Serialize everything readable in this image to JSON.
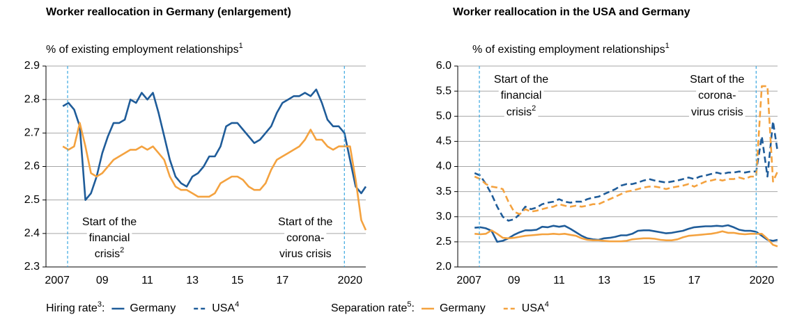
{
  "chart_data": [
    {
      "type": "line",
      "title": "Worker reallocation in Germany (enlargement)",
      "subtitle": "% of existing employment relationships",
      "subtitle_note": "1",
      "xlim": [
        2007,
        2021.2
      ],
      "xticks": [
        {
          "value": 2007.5,
          "label": "2007"
        },
        {
          "value": 2009.5,
          "label": "09"
        },
        {
          "value": 2011.5,
          "label": "11"
        },
        {
          "value": 2013.5,
          "label": "13"
        },
        {
          "value": 2015.5,
          "label": "15"
        },
        {
          "value": 2017.5,
          "label": "17"
        },
        {
          "value": 2020.5,
          "label": "2020"
        }
      ],
      "ylim": [
        2.3,
        2.9
      ],
      "yticks": [
        2.3,
        2.4,
        2.5,
        2.6,
        2.7,
        2.8,
        2.9
      ],
      "grid": true,
      "annotation_position": "bottom",
      "annotations": [
        {
          "x": 2007.96,
          "lines": [
            "Start of the",
            "financial",
            "crisis"
          ],
          "note": "2"
        },
        {
          "x": 2020.25,
          "lines": [
            "Start of the",
            "corona-",
            "virus crisis"
          ]
        }
      ],
      "x": [
        2007.75,
        2008,
        2008.25,
        2008.5,
        2008.75,
        2009,
        2009.25,
        2009.5,
        2009.75,
        2010,
        2010.25,
        2010.5,
        2010.75,
        2011,
        2011.25,
        2011.5,
        2011.75,
        2012,
        2012.25,
        2012.5,
        2012.75,
        2013,
        2013.25,
        2013.5,
        2013.75,
        2014,
        2014.25,
        2014.5,
        2014.75,
        2015,
        2015.25,
        2015.5,
        2015.75,
        2016,
        2016.25,
        2016.5,
        2016.75,
        2017,
        2017.25,
        2017.5,
        2017.75,
        2018,
        2018.25,
        2018.5,
        2018.75,
        2019,
        2019.25,
        2019.5,
        2019.75,
        2020,
        2020.25,
        2020.5,
        2020.75,
        2021,
        2021.2
      ],
      "series": [
        {
          "color": "#1f5c99",
          "style": "solid",
          "values": [
            2.78,
            2.79,
            2.77,
            2.72,
            2.5,
            2.52,
            2.57,
            2.64,
            2.69,
            2.73,
            2.73,
            2.74,
            2.8,
            2.79,
            2.82,
            2.8,
            2.82,
            2.76,
            2.69,
            2.62,
            2.57,
            2.55,
            2.54,
            2.57,
            2.58,
            2.6,
            2.63,
            2.63,
            2.66,
            2.72,
            2.73,
            2.73,
            2.71,
            2.69,
            2.67,
            2.68,
            2.7,
            2.72,
            2.76,
            2.79,
            2.8,
            2.81,
            2.81,
            2.82,
            2.81,
            2.83,
            2.79,
            2.74,
            2.72,
            2.72,
            2.7,
            2.62,
            2.54,
            2.52,
            2.54
          ]
        },
        {
          "color": "#f4a23f",
          "style": "solid",
          "values": [
            2.66,
            2.65,
            2.66,
            2.73,
            2.66,
            2.58,
            2.57,
            2.58,
            2.6,
            2.62,
            2.63,
            2.64,
            2.65,
            2.65,
            2.66,
            2.65,
            2.66,
            2.64,
            2.62,
            2.57,
            2.54,
            2.53,
            2.53,
            2.52,
            2.51,
            2.51,
            2.51,
            2.52,
            2.55,
            2.56,
            2.57,
            2.57,
            2.56,
            2.54,
            2.53,
            2.53,
            2.55,
            2.59,
            2.62,
            2.63,
            2.64,
            2.65,
            2.66,
            2.68,
            2.71,
            2.68,
            2.68,
            2.66,
            2.65,
            2.66,
            2.66,
            2.66,
            2.56,
            2.44,
            2.41
          ]
        }
      ]
    },
    {
      "type": "line",
      "title": "Worker reallocation in the USA and Germany",
      "subtitle": "% of existing employment relationships",
      "subtitle_note": "1",
      "xlim": [
        2007,
        2021.2
      ],
      "xticks": [
        {
          "value": 2007.5,
          "label": "2007"
        },
        {
          "value": 2009.5,
          "label": "09"
        },
        {
          "value": 2011.5,
          "label": "11"
        },
        {
          "value": 2013.5,
          "label": "13"
        },
        {
          "value": 2015.5,
          "label": "15"
        },
        {
          "value": 2017.5,
          "label": "17"
        },
        {
          "value": 2020.5,
          "label": "2020"
        }
      ],
      "ylim": [
        2,
        6
      ],
      "yticks": [
        {
          "value": 2,
          "label": "2.0"
        },
        2.5,
        {
          "value": 3,
          "label": "3.0"
        },
        3.5,
        {
          "value": 4,
          "label": "4.0"
        },
        4.5,
        {
          "value": 5,
          "label": "5.0"
        },
        5.5,
        {
          "value": 6,
          "label": "6.0"
        }
      ],
      "grid": true,
      "annotation_position": "top",
      "annotations": [
        {
          "x": 2007.96,
          "lines": [
            "Start of the",
            "financial",
            "crisis"
          ],
          "note": "2"
        },
        {
          "x": 2020.25,
          "lines": [
            "Start of the",
            "corona-",
            "virus crisis"
          ]
        }
      ],
      "x": [
        2007.75,
        2008,
        2008.25,
        2008.5,
        2008.75,
        2009,
        2009.25,
        2009.5,
        2009.75,
        2010,
        2010.25,
        2010.5,
        2010.75,
        2011,
        2011.25,
        2011.5,
        2011.75,
        2012,
        2012.25,
        2012.5,
        2012.75,
        2013,
        2013.25,
        2013.5,
        2013.75,
        2014,
        2014.25,
        2014.5,
        2014.75,
        2015,
        2015.25,
        2015.5,
        2015.75,
        2016,
        2016.25,
        2016.5,
        2016.75,
        2017,
        2017.25,
        2017.5,
        2017.75,
        2018,
        2018.25,
        2018.5,
        2018.75,
        2019,
        2019.25,
        2019.5,
        2019.75,
        2020,
        2020.25,
        2020.5,
        2020.75,
        2021,
        2021.2
      ],
      "series": [
        {
          "name": "Germany",
          "color": "#1f5c99",
          "style": "solid",
          "values": [
            2.78,
            2.79,
            2.77,
            2.72,
            2.5,
            2.52,
            2.57,
            2.64,
            2.69,
            2.73,
            2.73,
            2.74,
            2.8,
            2.79,
            2.82,
            2.8,
            2.82,
            2.76,
            2.69,
            2.62,
            2.57,
            2.55,
            2.54,
            2.57,
            2.58,
            2.6,
            2.63,
            2.63,
            2.66,
            2.72,
            2.73,
            2.73,
            2.71,
            2.69,
            2.67,
            2.68,
            2.7,
            2.72,
            2.76,
            2.79,
            2.8,
            2.81,
            2.81,
            2.82,
            2.81,
            2.83,
            2.79,
            2.74,
            2.72,
            2.72,
            2.7,
            2.62,
            2.54,
            2.52,
            2.54
          ]
        },
        {
          "name": "USA",
          "note": "4",
          "color": "#1f5c99",
          "style": "dashed",
          "values": [
            3.87,
            3.82,
            3.65,
            3.45,
            3.2,
            3.0,
            2.92,
            2.95,
            3.05,
            3.2,
            3.15,
            3.18,
            3.25,
            3.28,
            3.3,
            3.35,
            3.3,
            3.28,
            3.3,
            3.3,
            3.35,
            3.38,
            3.4,
            3.45,
            3.5,
            3.55,
            3.62,
            3.65,
            3.65,
            3.68,
            3.72,
            3.75,
            3.72,
            3.7,
            3.68,
            3.7,
            3.72,
            3.75,
            3.78,
            3.75,
            3.8,
            3.82,
            3.85,
            3.88,
            3.85,
            3.88,
            3.88,
            3.9,
            3.88,
            3.9,
            3.9,
            4.6,
            3.8,
            4.9,
            4.3
          ]
        },
        {
          "name": "Germany",
          "color": "#f4a23f",
          "style": "solid",
          "values": [
            2.66,
            2.65,
            2.66,
            2.73,
            2.66,
            2.58,
            2.57,
            2.58,
            2.6,
            2.62,
            2.63,
            2.64,
            2.65,
            2.65,
            2.66,
            2.65,
            2.66,
            2.64,
            2.62,
            2.57,
            2.54,
            2.53,
            2.53,
            2.52,
            2.51,
            2.51,
            2.51,
            2.52,
            2.55,
            2.56,
            2.57,
            2.57,
            2.56,
            2.54,
            2.53,
            2.53,
            2.55,
            2.59,
            2.62,
            2.63,
            2.64,
            2.65,
            2.66,
            2.68,
            2.71,
            2.68,
            2.68,
            2.66,
            2.65,
            2.66,
            2.66,
            2.66,
            2.56,
            2.44,
            2.41
          ]
        },
        {
          "name": "USA",
          "note": "4",
          "color": "#f4a23f",
          "style": "dashed",
          "values": [
            3.8,
            3.75,
            3.65,
            3.6,
            3.58,
            3.55,
            3.3,
            3.1,
            3.05,
            3.15,
            3.1,
            3.12,
            3.15,
            3.18,
            3.2,
            3.25,
            3.22,
            3.2,
            3.22,
            3.2,
            3.22,
            3.25,
            3.25,
            3.3,
            3.35,
            3.4,
            3.45,
            3.5,
            3.52,
            3.55,
            3.58,
            3.6,
            3.6,
            3.58,
            3.55,
            3.58,
            3.6,
            3.62,
            3.65,
            3.6,
            3.65,
            3.7,
            3.72,
            3.75,
            3.72,
            3.75,
            3.75,
            3.78,
            3.75,
            3.8,
            3.8,
            5.6,
            5.6,
            3.7,
            3.9
          ]
        }
      ]
    }
  ],
  "legend": [
    {
      "label": "Hiring rate",
      "note": "3",
      "suffix": ":"
    },
    {
      "label": "Separation rate",
      "note": "5",
      "suffix": ":"
    }
  ]
}
